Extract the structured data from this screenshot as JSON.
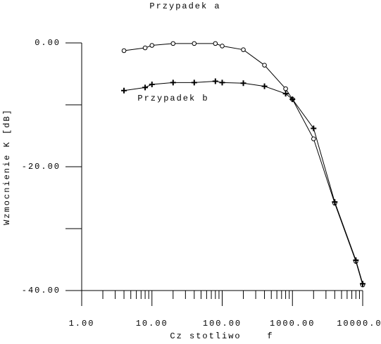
{
  "chart_data": {
    "type": "line",
    "annotations": [
      "Przypadek a",
      "Przypadek b"
    ],
    "xlabel": "Cz stotliwo    f",
    "ylabel": "Wzmocnienie K [dB]",
    "xscale": "log",
    "xlim": [
      1,
      10000
    ],
    "ylim": [
      -40,
      0
    ],
    "xticks": [
      {
        "value": 1,
        "label": "1.00"
      },
      {
        "value": 10,
        "label": "10.00"
      },
      {
        "value": 100,
        "label": "100.00"
      },
      {
        "value": 1000,
        "label": "1000.00"
      },
      {
        "value": 10000,
        "label": "10000.00"
      }
    ],
    "xminor_ticks": [
      2,
      3,
      4,
      5,
      6,
      7,
      8,
      9,
      20,
      30,
      40,
      50,
      60,
      70,
      80,
      90,
      200,
      300,
      400,
      500,
      600,
      700,
      800,
      900,
      2000,
      3000,
      4000,
      5000,
      6000,
      7000,
      8000,
      9000
    ],
    "yticks": [
      {
        "value": 0,
        "label": "0.00"
      },
      {
        "value": -20,
        "label": "-20.00"
      },
      {
        "value": -40,
        "label": "-40.00"
      }
    ],
    "yminor_ticks": [
      -10,
      -30
    ],
    "series": [
      {
        "marker": "circle",
        "color": "#000000",
        "x": [
          4,
          8,
          10,
          20,
          40,
          80,
          100,
          200,
          400,
          800,
          1000,
          2000,
          4000,
          8000,
          10000
        ],
        "values": [
          -1.25,
          -0.8,
          -0.4,
          -0.1,
          -0.1,
          -0.1,
          -0.5,
          -1.1,
          -3.6,
          -7.4,
          -9.1,
          -15.5,
          -25.9,
          -35.3,
          -39.1
        ]
      },
      {
        "marker": "plus",
        "color": "#000000",
        "x": [
          4,
          8,
          10,
          20,
          40,
          80,
          100,
          200,
          400,
          800,
          1000,
          2000,
          4000,
          8000,
          10000
        ],
        "values": [
          -7.7,
          -7.2,
          -6.7,
          -6.4,
          -6.4,
          -6.2,
          -6.4,
          -6.5,
          -7.0,
          -8.2,
          -9.1,
          -13.8,
          -25.7,
          -35.1,
          -38.9
        ]
      }
    ]
  }
}
